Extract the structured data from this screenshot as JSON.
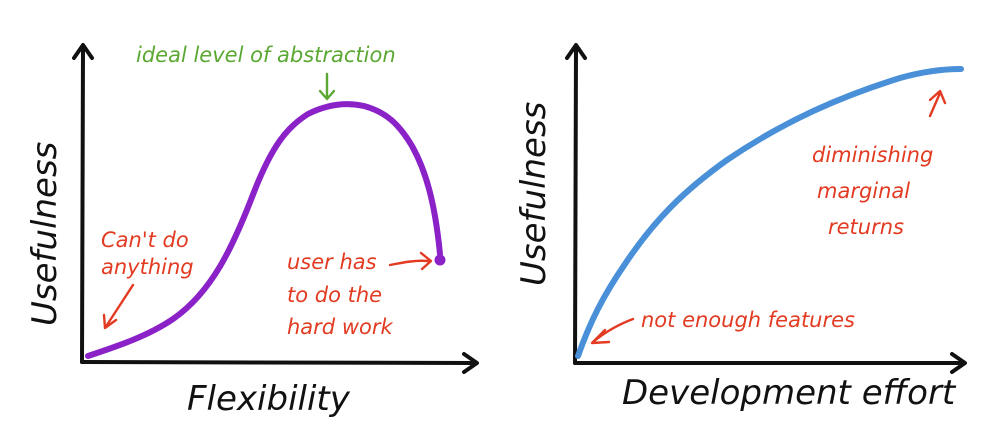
{
  "colors": {
    "axis": "#111111",
    "flexibility_curve": "#8a22c7",
    "effort_curve": "#4a90d9",
    "note_red": "#e23b22",
    "note_green": "#5aa832"
  },
  "panel_left": {
    "x_label": "Flexibility",
    "y_label": "Usefulness",
    "top_annotation": "ideal level of abstraction",
    "left_annotation": [
      "Can't do",
      "anything"
    ],
    "right_annotation": [
      "user has",
      "to do the",
      "hard work"
    ]
  },
  "panel_right": {
    "x_label": "Development effort",
    "y_label": "Usefulness",
    "bottom_annotation": "not enough features",
    "right_annotation": [
      "diminishing",
      "marginal",
      "returns"
    ]
  }
}
